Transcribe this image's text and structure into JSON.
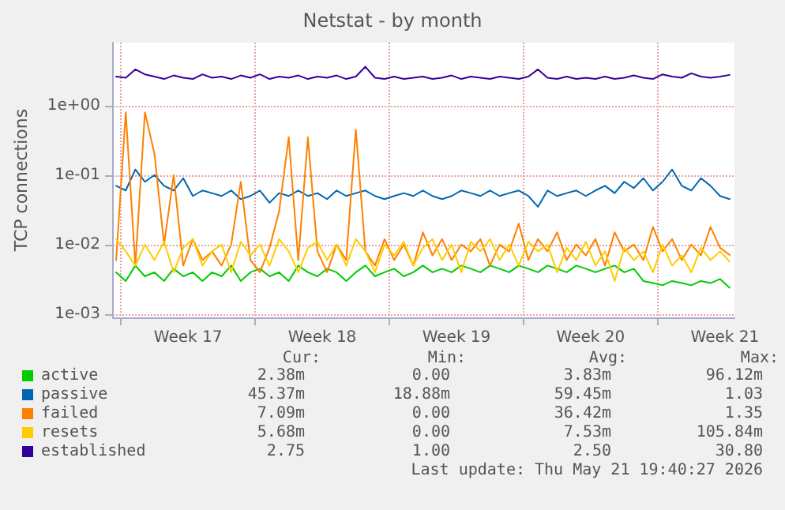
{
  "chart_data": {
    "type": "line",
    "title": "Netstat - by month",
    "ylabel": "TCP connections",
    "log": "y",
    "grid": true,
    "legend": "bottom left",
    "marker": "none",
    "line_style": "solid",
    "xlim": [
      "2026-04-19T14:00",
      "2026-05-22T00:00"
    ],
    "xticks": [
      {
        "value": "2026-04-20",
        "label": null
      },
      {
        "value": "2026-04-23T12:00",
        "label": "Week 17"
      },
      {
        "value": "2026-04-27",
        "label": null
      },
      {
        "value": "2026-04-30T12:00",
        "label": "Week 18"
      },
      {
        "value": "2026-05-04",
        "label": null
      },
      {
        "value": "2026-05-07T12:00",
        "label": "Week 19"
      },
      {
        "value": "2026-05-11",
        "label": null
      },
      {
        "value": "2026-05-14T12:00",
        "label": "Week 20"
      },
      {
        "value": "2026-05-18",
        "label": null
      },
      {
        "value": "2026-05-21T12:00",
        "label": "Week 21"
      }
    ],
    "ylim": [
      0.0009,
      8
    ],
    "yticks": [
      {
        "value": 0.001,
        "label": "1e-03"
      },
      {
        "value": 0.01,
        "label": "1e-02"
      },
      {
        "value": 0.1,
        "label": "1e-01"
      },
      {
        "value": 1,
        "label": "1e+00"
      }
    ],
    "x": [
      "2026-04-19T18:00",
      "2026-04-20T06:00",
      "2026-04-20T18:00",
      "2026-04-21T06:00",
      "2026-04-21T18:00",
      "2026-04-22T06:00",
      "2026-04-22T18:00",
      "2026-04-23T06:00",
      "2026-04-23T18:00",
      "2026-04-24T06:00",
      "2026-04-24T18:00",
      "2026-04-25T06:00",
      "2026-04-25T18:00",
      "2026-04-26T06:00",
      "2026-04-26T18:00",
      "2026-04-27T06:00",
      "2026-04-27T18:00",
      "2026-04-28T06:00",
      "2026-04-28T18:00",
      "2026-04-29T06:00",
      "2026-04-29T18:00",
      "2026-04-30T06:00",
      "2026-04-30T18:00",
      "2026-05-01T06:00",
      "2026-05-01T18:00",
      "2026-05-02T06:00",
      "2026-05-02T18:00",
      "2026-05-03T06:00",
      "2026-05-03T18:00",
      "2026-05-04T06:00",
      "2026-05-04T18:00",
      "2026-05-05T06:00",
      "2026-05-05T18:00",
      "2026-05-06T06:00",
      "2026-05-06T18:00",
      "2026-05-07T06:00",
      "2026-05-07T18:00",
      "2026-05-08T06:00",
      "2026-05-08T18:00",
      "2026-05-09T06:00",
      "2026-05-09T18:00",
      "2026-05-10T06:00",
      "2026-05-10T18:00",
      "2026-05-11T06:00",
      "2026-05-11T18:00",
      "2026-05-12T06:00",
      "2026-05-12T18:00",
      "2026-05-13T06:00",
      "2026-05-13T18:00",
      "2026-05-14T06:00",
      "2026-05-14T18:00",
      "2026-05-15T06:00",
      "2026-05-15T18:00",
      "2026-05-16T06:00",
      "2026-05-16T18:00",
      "2026-05-17T06:00",
      "2026-05-17T18:00",
      "2026-05-18T06:00",
      "2026-05-18T18:00",
      "2026-05-19T06:00",
      "2026-05-19T18:00",
      "2026-05-20T06:00",
      "2026-05-20T18:00",
      "2026-05-21T06:00",
      "2026-05-21T18:00"
    ],
    "series": [
      {
        "name": "active",
        "color": "#00cc00",
        "values": [
          0.004,
          0.003,
          0.005,
          0.0035,
          0.004,
          0.003,
          0.0045,
          0.0035,
          0.004,
          0.003,
          0.004,
          0.0035,
          0.005,
          0.003,
          0.004,
          0.0045,
          0.0035,
          0.004,
          0.003,
          0.005,
          0.004,
          0.0035,
          0.0045,
          0.004,
          0.003,
          0.004,
          0.005,
          0.0035,
          0.004,
          0.0045,
          0.0035,
          0.004,
          0.005,
          0.004,
          0.0045,
          0.004,
          0.005,
          0.0045,
          0.004,
          0.005,
          0.0045,
          0.004,
          0.005,
          0.0045,
          0.004,
          0.005,
          0.0045,
          0.004,
          0.005,
          0.0045,
          0.004,
          0.0045,
          0.005,
          0.004,
          0.0045,
          0.003,
          0.0028,
          0.0026,
          0.003,
          0.0028,
          0.0026,
          0.003,
          0.0028,
          0.0032,
          0.0024
        ]
      },
      {
        "name": "passive",
        "color": "#0066b3",
        "values": [
          0.07,
          0.06,
          0.12,
          0.08,
          0.1,
          0.07,
          0.06,
          0.09,
          0.05,
          0.06,
          0.055,
          0.05,
          0.06,
          0.045,
          0.05,
          0.06,
          0.04,
          0.055,
          0.05,
          0.06,
          0.05,
          0.055,
          0.045,
          0.06,
          0.05,
          0.055,
          0.06,
          0.05,
          0.045,
          0.05,
          0.055,
          0.05,
          0.06,
          0.05,
          0.045,
          0.05,
          0.06,
          0.055,
          0.05,
          0.06,
          0.05,
          0.055,
          0.06,
          0.05,
          0.035,
          0.06,
          0.05,
          0.055,
          0.06,
          0.05,
          0.06,
          0.07,
          0.055,
          0.08,
          0.065,
          0.09,
          0.06,
          0.08,
          0.12,
          0.07,
          0.06,
          0.09,
          0.07,
          0.05,
          0.045
        ]
      },
      {
        "name": "failed",
        "color": "#ff8000",
        "values": [
          0.006,
          0.8,
          0.005,
          0.8,
          0.2,
          0.01,
          0.1,
          0.005,
          0.012,
          0.006,
          0.008,
          0.005,
          0.01,
          0.08,
          0.006,
          0.004,
          0.009,
          0.03,
          0.35,
          0.006,
          0.35,
          0.008,
          0.004,
          0.01,
          0.006,
          0.45,
          0.008,
          0.005,
          0.012,
          0.006,
          0.01,
          0.005,
          0.015,
          0.007,
          0.012,
          0.006,
          0.01,
          0.008,
          0.012,
          0.005,
          0.01,
          0.008,
          0.02,
          0.006,
          0.012,
          0.008,
          0.015,
          0.006,
          0.01,
          0.007,
          0.012,
          0.005,
          0.015,
          0.008,
          0.01,
          0.006,
          0.018,
          0.008,
          0.012,
          0.006,
          0.01,
          0.007,
          0.018,
          0.009,
          0.00709
        ]
      },
      {
        "name": "resets",
        "color": "#ffcc00",
        "values": [
          0.012,
          0.008,
          0.005,
          0.01,
          0.006,
          0.011,
          0.004,
          0.009,
          0.012,
          0.005,
          0.008,
          0.01,
          0.004,
          0.011,
          0.007,
          0.01,
          0.005,
          0.012,
          0.008,
          0.004,
          0.009,
          0.011,
          0.006,
          0.01,
          0.005,
          0.012,
          0.008,
          0.004,
          0.01,
          0.007,
          0.011,
          0.005,
          0.009,
          0.012,
          0.006,
          0.01,
          0.004,
          0.011,
          0.008,
          0.012,
          0.006,
          0.01,
          0.005,
          0.011,
          0.008,
          0.01,
          0.004,
          0.009,
          0.006,
          0.011,
          0.005,
          0.008,
          0.003,
          0.009,
          0.006,
          0.008,
          0.004,
          0.01,
          0.005,
          0.007,
          0.004,
          0.009,
          0.006,
          0.008,
          0.0057
        ]
      },
      {
        "name": "established",
        "color": "#330099",
        "values": [
          2.6,
          2.5,
          3.3,
          2.8,
          2.6,
          2.4,
          2.7,
          2.5,
          2.4,
          2.8,
          2.5,
          2.6,
          2.4,
          2.7,
          2.5,
          2.8,
          2.4,
          2.6,
          2.5,
          2.7,
          2.4,
          2.6,
          2.5,
          2.7,
          2.4,
          2.6,
          3.6,
          2.5,
          2.4,
          2.6,
          2.4,
          2.5,
          2.6,
          2.4,
          2.5,
          2.7,
          2.4,
          2.6,
          2.5,
          2.4,
          2.6,
          2.5,
          2.4,
          2.6,
          3.3,
          2.5,
          2.4,
          2.6,
          2.4,
          2.5,
          2.4,
          2.6,
          2.4,
          2.5,
          2.7,
          2.5,
          2.4,
          2.8,
          2.6,
          2.5,
          2.9,
          2.6,
          2.5,
          2.6,
          2.75
        ]
      }
    ],
    "annotations": [
      "Cur:",
      "Min:",
      "Avg:",
      "Max:",
      "2.38m",
      "0.00",
      "3.83m",
      "96.12m",
      "45.37m",
      "18.88m",
      "59.45m",
      "1.03",
      "7.09m",
      "0.00",
      "36.42m",
      "1.35",
      "5.68m",
      "0.00",
      "7.53m",
      "105.84m",
      "2.75",
      "1.00",
      "2.50",
      "30.80",
      "Last update: Thu May 21 19:40:27 2026"
    ]
  }
}
